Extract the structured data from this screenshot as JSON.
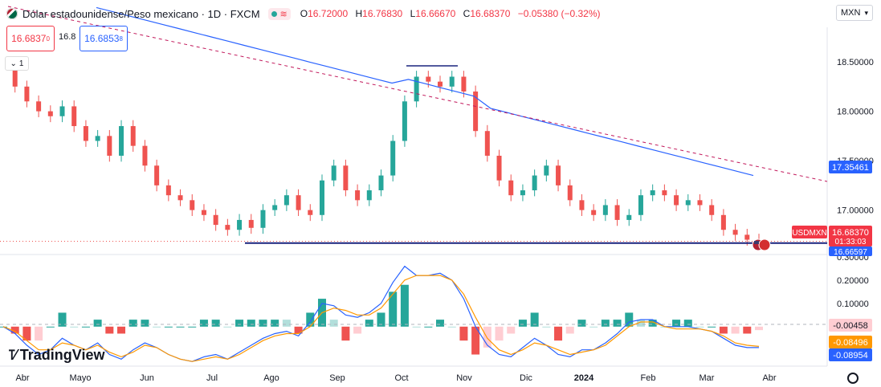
{
  "header": {
    "title": "Dólar estadounidense/Peso mexicano · 1D · FXCM",
    "ohlc": {
      "o_label": "O",
      "o": "16.72000",
      "h_label": "H",
      "h": "16.76830",
      "l_label": "L",
      "l": "16.66670",
      "c_label": "C",
      "c": "16.68370",
      "change": "−0.05380 (−0.32%)"
    },
    "sell_price": "16.6837",
    "sell_sup": "0",
    "spread": "16.8",
    "buy_price": "16.6853",
    "buy_sup": "8",
    "pane_count": "1",
    "currency": "MXN",
    "brand": "TradingView"
  },
  "colors": {
    "up": "#26a69a",
    "down": "#ef5350",
    "ma": "#2962ff",
    "signal": "#ff9800",
    "trend": "#c2185b",
    "blue_label": "#2962ff",
    "red_label": "#f23645"
  },
  "chart_data": [
    {
      "type": "candlestick",
      "symbol_label": "USDMXN",
      "x_ticks": [
        "Abr",
        "Mayo",
        "Jun",
        "Jul",
        "Ago",
        "Sep",
        "Oct",
        "Nov",
        "Dic",
        "2024",
        "Feb",
        "Mar",
        "Abr"
      ],
      "y_ticks": [
        "18.50000",
        "18.00000",
        "17.50000",
        "17.00000"
      ],
      "ylim": [
        16.55,
        18.85
      ],
      "last_price": "16.68370",
      "countdown": "01:33:03",
      "ma_value": "17.35461",
      "support_value": "16.66597",
      "support": 16.666,
      "series": [
        {
          "name": "",
          "weekly_close": [
            18.45,
            18.25,
            18.1,
            18.0,
            17.95,
            18.05,
            17.85,
            17.7,
            17.75,
            17.55,
            17.85,
            17.65,
            17.45,
            17.25,
            17.15,
            17.1,
            17.0,
            16.95,
            16.85,
            16.8,
            16.9,
            16.82,
            17.0,
            17.05,
            17.15,
            17.0,
            16.95,
            17.3,
            17.45,
            17.2,
            17.1,
            17.2,
            17.35,
            17.7,
            18.1,
            18.35,
            18.3,
            18.25,
            18.35,
            18.2,
            17.8,
            17.55,
            17.3,
            17.15,
            17.2,
            17.35,
            17.45,
            17.25,
            17.1,
            17.0,
            16.95,
            17.05,
            16.9,
            16.95,
            17.15,
            17.2,
            17.15,
            17.05,
            17.1,
            17.05,
            16.95,
            16.8,
            16.75,
            16.7,
            16.68
          ]
        },
        {
          "name": "",
          "ma_start_end": [
            19.05,
            17.35
          ]
        }
      ]
    },
    {
      "type": "line",
      "y_ticks": [
        "0.30000",
        "0.20000",
        "0.10000"
      ],
      "ylim": [
        -0.17,
        0.3
      ],
      "hist_value": "-0.00458",
      "signal_value": "-0.08496",
      "macd_value": "-0.08954",
      "series": [
        {
          "name": "",
          "values": [
            0.0,
            -0.03,
            -0.08,
            -0.12,
            -0.1,
            -0.05,
            -0.08,
            -0.1,
            -0.07,
            -0.12,
            -0.14,
            -0.1,
            -0.07,
            -0.09,
            -0.12,
            -0.14,
            -0.15,
            -0.13,
            -0.12,
            -0.14,
            -0.11,
            -0.08,
            -0.05,
            -0.03,
            -0.02,
            -0.04,
            0.02,
            0.1,
            0.09,
            0.05,
            0.04,
            0.06,
            0.1,
            0.19,
            0.26,
            0.22,
            0.22,
            0.23,
            0.2,
            0.12,
            0.0,
            -0.08,
            -0.12,
            -0.13,
            -0.09,
            -0.05,
            -0.08,
            -0.12,
            -0.13,
            -0.1,
            -0.1,
            -0.07,
            -0.03,
            0.02,
            0.03,
            0.03,
            0.0,
            0.0,
            0.0,
            -0.01,
            -0.02,
            -0.05,
            -0.08,
            -0.09,
            -0.09
          ]
        },
        {
          "name": "",
          "values": [
            0.0,
            -0.02,
            -0.06,
            -0.1,
            -0.1,
            -0.07,
            -0.08,
            -0.1,
            -0.08,
            -0.11,
            -0.13,
            -0.11,
            -0.08,
            -0.09,
            -0.12,
            -0.14,
            -0.15,
            -0.14,
            -0.13,
            -0.14,
            -0.12,
            -0.09,
            -0.06,
            -0.04,
            -0.03,
            -0.03,
            0.0,
            0.06,
            0.08,
            0.07,
            0.05,
            0.05,
            0.08,
            0.14,
            0.2,
            0.22,
            0.22,
            0.22,
            0.2,
            0.14,
            0.04,
            -0.05,
            -0.1,
            -0.12,
            -0.1,
            -0.07,
            -0.08,
            -0.1,
            -0.12,
            -0.11,
            -0.1,
            -0.08,
            -0.04,
            0.0,
            0.02,
            0.02,
            0.0,
            -0.01,
            -0.01,
            -0.01,
            -0.02,
            -0.04,
            -0.07,
            -0.08,
            -0.085
          ]
        }
      ]
    }
  ]
}
